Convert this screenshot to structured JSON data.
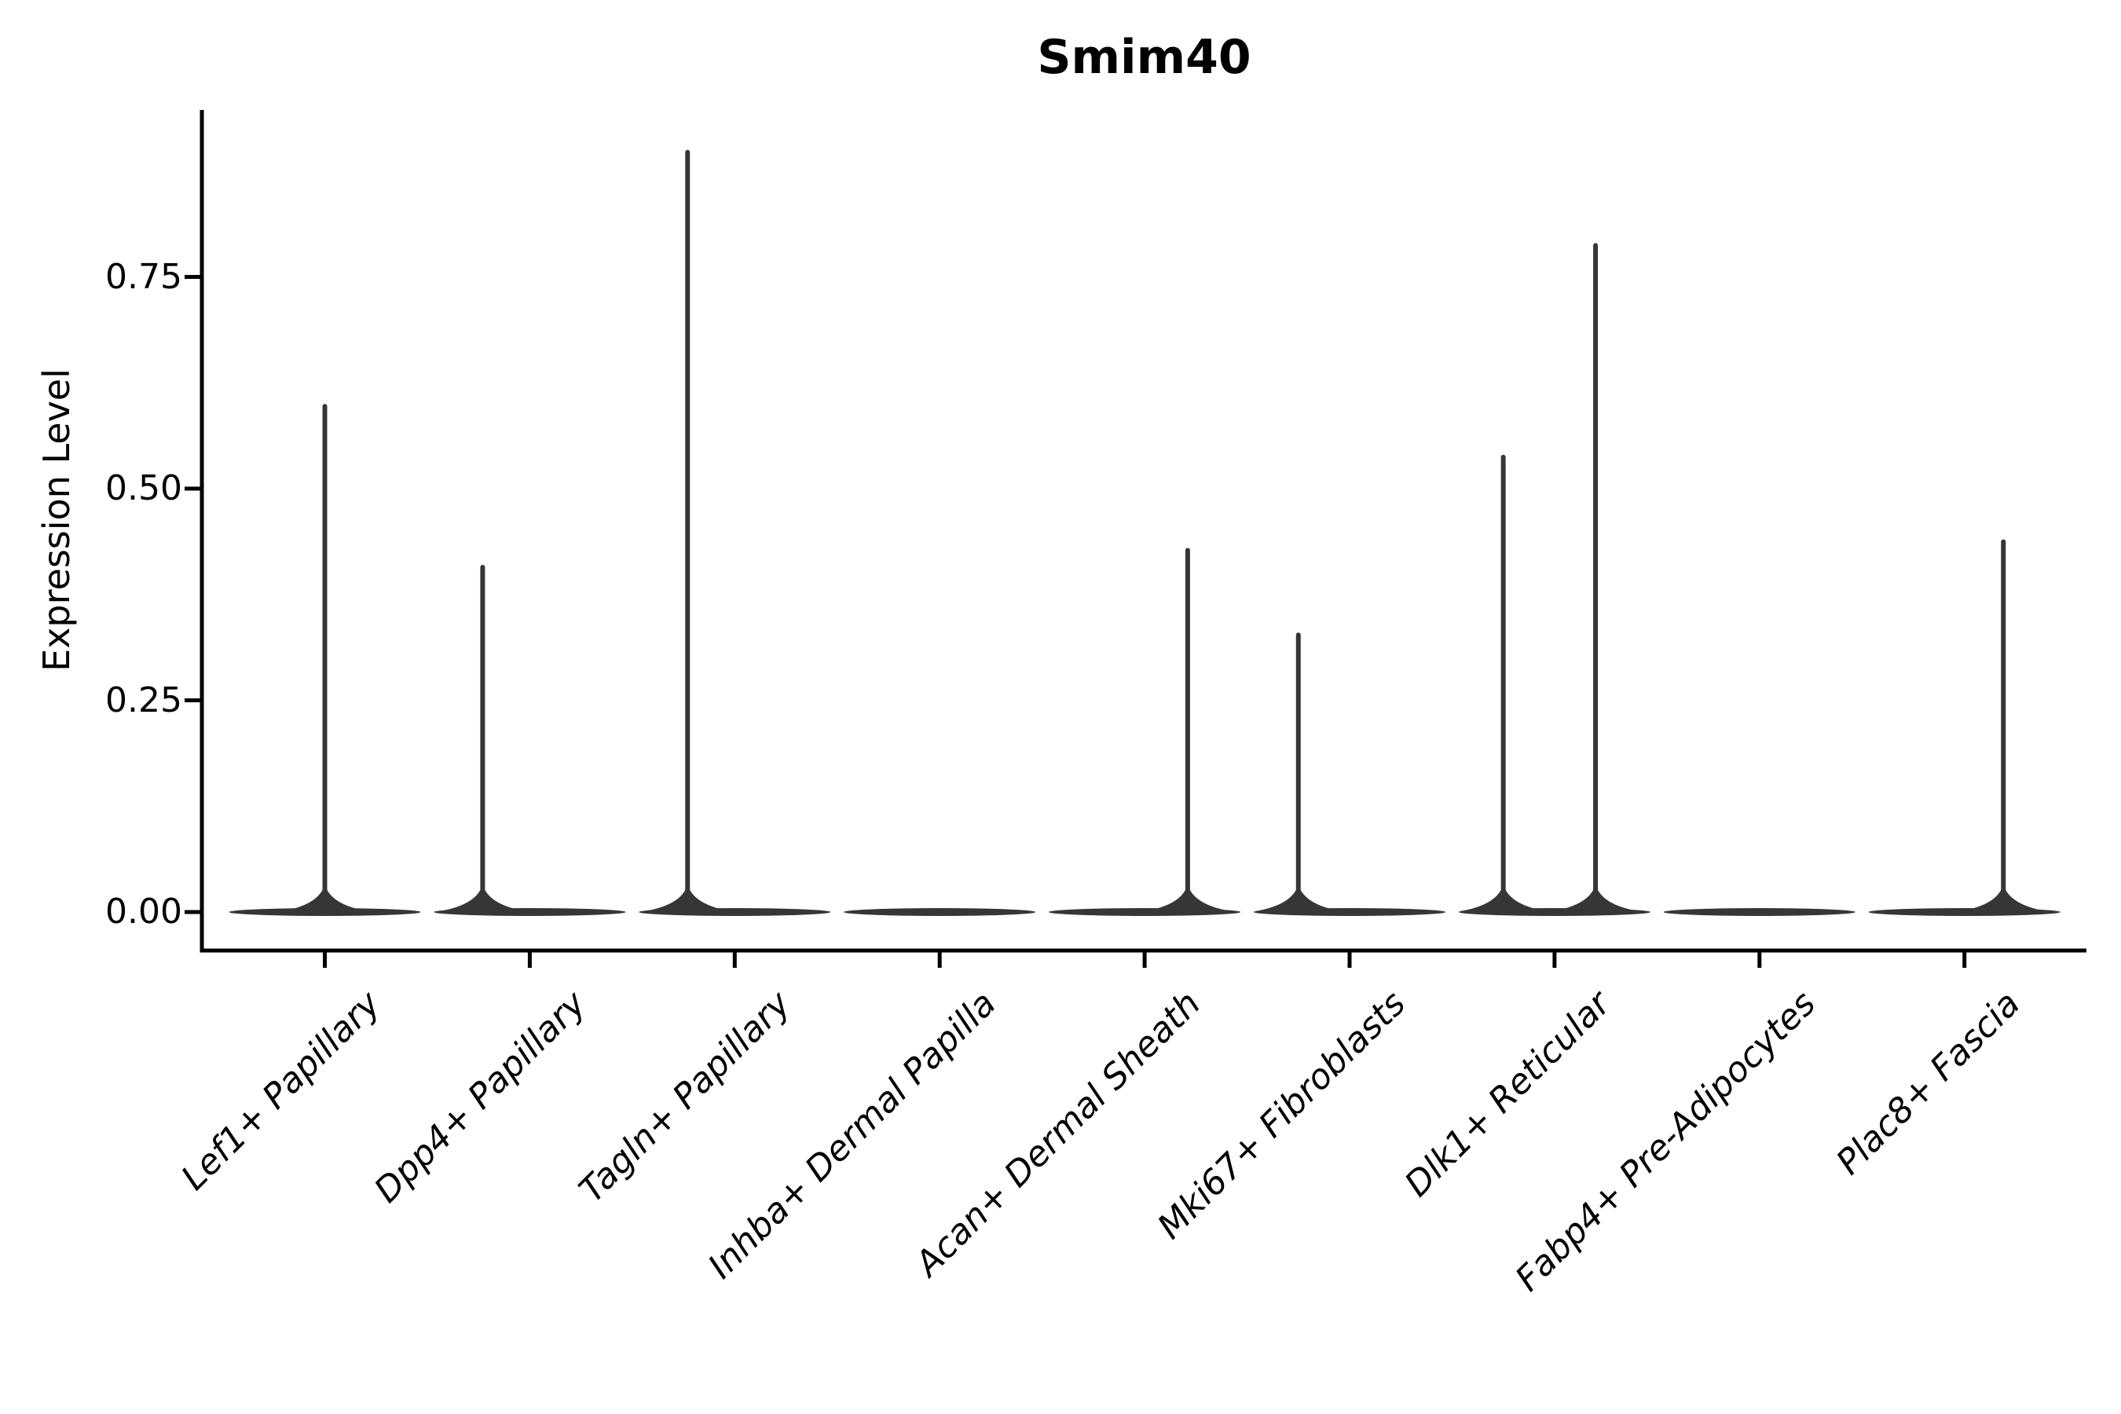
{
  "title": "Smim40",
  "y_axis": {
    "label": "Expression Level",
    "tick_labels": [
      "0.00",
      "0.25",
      "0.50",
      "0.75"
    ],
    "tick_values": [
      0.0,
      0.25,
      0.5,
      0.75
    ]
  },
  "x_axis": {
    "categories": [
      "Lef1+ Papillary",
      "Dpp4+ Papillary",
      "Tagln+ Papillary",
      "Inhba+ Dermal Papilla",
      "Acan+ Dermal Sheath",
      "Mki67+ Fibroblasts",
      "Dlk1+ Reticular",
      "Fabp4+ Pre-Adipocytes",
      "Plac8+ Fascia"
    ]
  },
  "chart_data": {
    "type": "violin",
    "title": "Smim40",
    "xlabel": "",
    "ylabel": "Expression Level",
    "ylim": [
      -0.045,
      0.947
    ],
    "yticks": [
      0.0,
      0.25,
      0.5,
      0.75
    ],
    "ytick_labels": [
      "0.00",
      "0.25",
      "0.50",
      "0.75"
    ],
    "grid": false,
    "legend": "none",
    "categories": [
      "Lef1+ Papillary",
      "Dpp4+ Papillary",
      "Tagln+ Papillary",
      "Inhba+ Dermal Papilla",
      "Acan+ Dermal Sheath",
      "Mki67+ Fibroblasts",
      "Dlk1+ Reticular",
      "Fabp4+ Pre-Adipocytes",
      "Plac8+ Fascia"
    ],
    "violin_halfwidth": 0.467,
    "violins": [
      {
        "category": "Lef1+ Papillary",
        "max_expression": 0.6,
        "spikes": [
          {
            "offset": 0.0,
            "value": 0.6
          }
        ]
      },
      {
        "category": "Dpp4+ Papillary",
        "max_expression": 0.41,
        "spikes": [
          {
            "offset": -0.23,
            "value": 0.41
          }
        ]
      },
      {
        "category": "Tagln+ Papillary",
        "max_expression": 0.9,
        "spikes": [
          {
            "offset": -0.23,
            "value": 0.9
          }
        ]
      },
      {
        "category": "Inhba+ Dermal Papilla",
        "max_expression": 0.0,
        "spikes": []
      },
      {
        "category": "Acan+ Dermal Sheath",
        "max_expression": 0.43,
        "spikes": [
          {
            "offset": 0.21,
            "value": 0.43
          }
        ]
      },
      {
        "category": "Mki67+ Fibroblasts",
        "max_expression": 0.33,
        "spikes": [
          {
            "offset": -0.25,
            "value": 0.33
          }
        ]
      },
      {
        "category": "Dlk1+ Reticular",
        "max_expression": 0.79,
        "spikes": [
          {
            "offset": -0.25,
            "value": 0.54
          },
          {
            "offset": 0.2,
            "value": 0.79
          }
        ]
      },
      {
        "category": "Fabp4+ Pre-Adipocytes",
        "max_expression": 0.0,
        "spikes": []
      },
      {
        "category": "Plac8+ Fascia",
        "max_expression": 0.44,
        "spikes": [
          {
            "offset": 0.19,
            "value": 0.44
          }
        ]
      }
    ],
    "style": {
      "violin_color": "#363636",
      "axis_color": "#000000",
      "text_color": "#000000",
      "background": "#ffffff"
    }
  }
}
